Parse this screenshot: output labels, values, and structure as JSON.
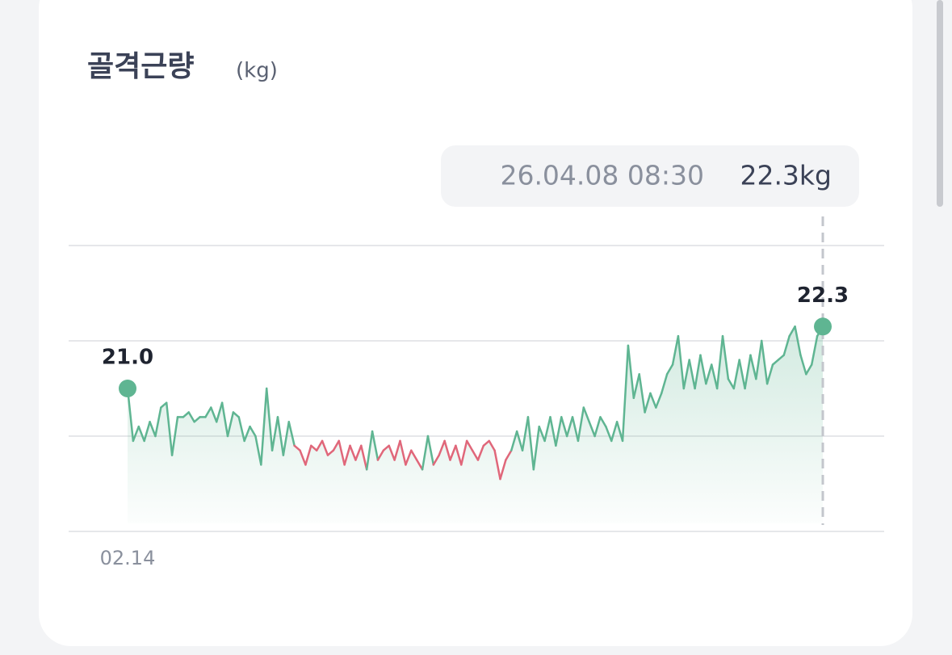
{
  "chart_data": {
    "type": "line",
    "title": "골격근량",
    "unit": "(kg)",
    "tooltip": {
      "date": "26.04.08 08:30",
      "value": "22.3kg"
    },
    "categories": [
      "02.14",
      null,
      null,
      null,
      null,
      null,
      null,
      null,
      null,
      null,
      null,
      null,
      null,
      null,
      null,
      null,
      null,
      null,
      null,
      null,
      null,
      null,
      null,
      null,
      null,
      null,
      null,
      null,
      null,
      null,
      null,
      null,
      null,
      null,
      null,
      null,
      null,
      null,
      null,
      null,
      null,
      null,
      null,
      null,
      null,
      null,
      null,
      null,
      null,
      null,
      null,
      null,
      null,
      null,
      null,
      null,
      null,
      null,
      null,
      null,
      null,
      null,
      null,
      null,
      null,
      null,
      null,
      null,
      null,
      null,
      null,
      null,
      null,
      null,
      null,
      null,
      null,
      null,
      null,
      null,
      null,
      null,
      null,
      null,
      null,
      null,
      null,
      null,
      null,
      null,
      null,
      null,
      null,
      null,
      null,
      null,
      null,
      null,
      null,
      null,
      null,
      null,
      null,
      null,
      null,
      null,
      null,
      null,
      null,
      null,
      null,
      null,
      null,
      null,
      null,
      null,
      null,
      null,
      null,
      null,
      null,
      null,
      null,
      null,
      null,
      null
    ],
    "values": [
      21.0,
      19.9,
      20.2,
      19.9,
      20.3,
      20.0,
      20.6,
      20.7,
      19.6,
      20.4,
      20.4,
      20.5,
      20.3,
      20.4,
      20.4,
      20.6,
      20.3,
      20.7,
      20.0,
      20.5,
      20.4,
      19.9,
      20.2,
      20.0,
      19.4,
      21.0,
      19.7,
      20.4,
      19.6,
      20.3,
      19.8,
      19.7,
      19.4,
      19.8,
      19.7,
      19.9,
      19.6,
      19.7,
      19.9,
      19.4,
      19.8,
      19.5,
      19.8,
      19.3,
      20.1,
      19.5,
      19.7,
      19.8,
      19.5,
      19.9,
      19.4,
      19.7,
      19.5,
      19.3,
      20.0,
      19.4,
      19.6,
      19.9,
      19.5,
      19.8,
      19.4,
      19.9,
      19.7,
      19.5,
      19.8,
      19.9,
      19.7,
      19.1,
      19.5,
      19.7,
      20.1,
      19.7,
      20.4,
      19.3,
      20.2,
      19.9,
      20.4,
      19.8,
      20.4,
      20.0,
      20.4,
      19.9,
      20.6,
      20.3,
      20.0,
      20.4,
      20.2,
      19.9,
      20.3,
      19.9,
      21.9,
      20.8,
      21.3,
      20.5,
      20.9,
      20.6,
      20.9,
      21.3,
      21.5,
      22.1,
      21.0,
      21.6,
      21.0,
      21.7,
      21.1,
      21.5,
      21.0,
      22.1,
      21.2,
      21.0,
      21.6,
      21.0,
      21.7,
      21.2,
      22.0,
      21.1,
      21.5,
      21.6,
      21.7,
      22.1,
      22.3,
      21.7,
      21.3,
      21.5,
      22.1,
      22.3
    ],
    "value_labels": [
      "21.0",
      null,
      null,
      null,
      null,
      null,
      null,
      null,
      null,
      null,
      null,
      null,
      null,
      null,
      null,
      null,
      null,
      null,
      null,
      null,
      null,
      null,
      null,
      null,
      null,
      null,
      null,
      null,
      null,
      null,
      null,
      null,
      null,
      null,
      null,
      null,
      null,
      null,
      null,
      null,
      null,
      null,
      null,
      null,
      null,
      null,
      null,
      null,
      null,
      null,
      null,
      null,
      null,
      null,
      null,
      null,
      null,
      null,
      null,
      null,
      null,
      null,
      null,
      null,
      null,
      null,
      null,
      null,
      null,
      null,
      null,
      null,
      null,
      null,
      null,
      null,
      null,
      null,
      null,
      null,
      null,
      null,
      null,
      null,
      null,
      null,
      null,
      null,
      null,
      null,
      null,
      null,
      null,
      null,
      null,
      null,
      null,
      null,
      null,
      null,
      null,
      null,
      null,
      null,
      null,
      null,
      null,
      null,
      null,
      null,
      null,
      null,
      null,
      null,
      null,
      null,
      null,
      null,
      null,
      null,
      null,
      null,
      null,
      null,
      null,
      "22.3"
    ],
    "color": "#5fb592",
    "down_color": "#e0677a",
    "ylim": [
      18,
      24
    ],
    "yticks": [
      18,
      20,
      22,
      24
    ],
    "grid": true
  }
}
